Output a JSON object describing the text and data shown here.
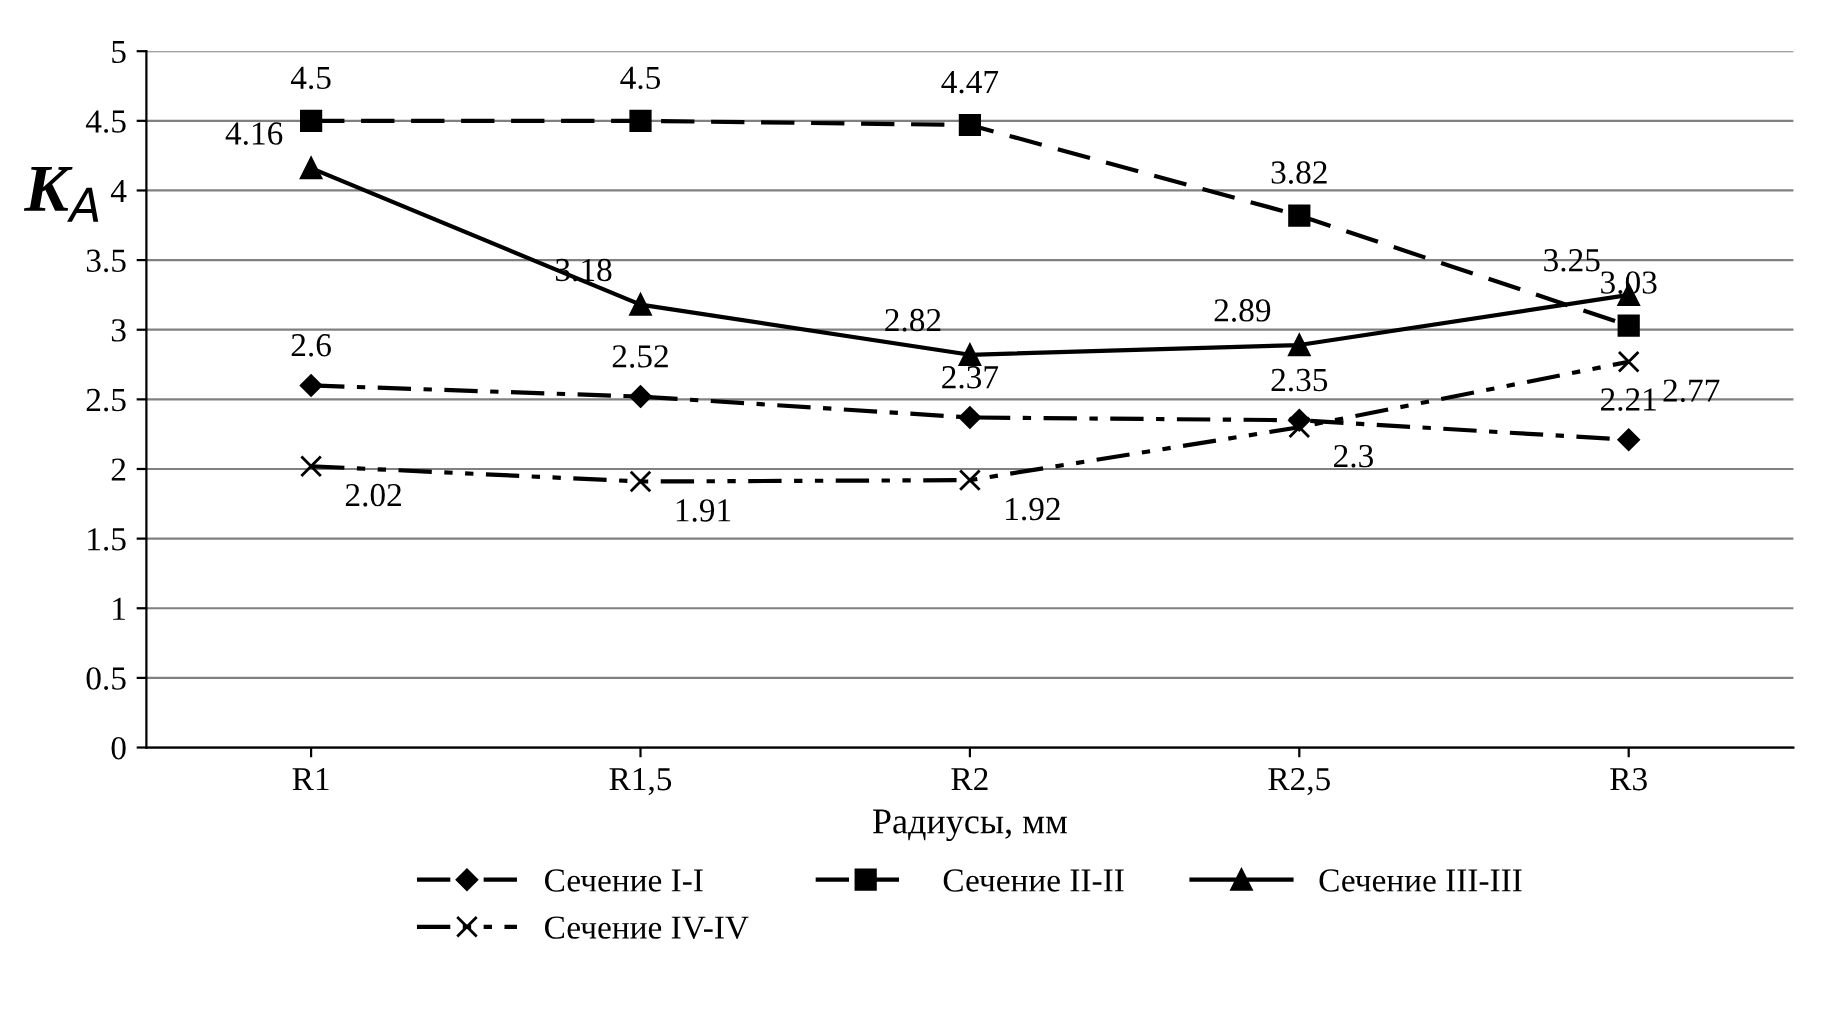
{
  "chart_data": {
    "type": "line",
    "xlabel": "Радиусы, мм",
    "ylabel": "K$_{A}$",
    "categories": [
      "R1",
      "R1,5",
      "R2",
      "R2,5",
      "R3"
    ],
    "series": [
      {
        "name": "Сечение I-I",
        "color": "#000000",
        "marker": "diamond",
        "line_style": "dashdot",
        "values": [
          2.6,
          2.52,
          2.37,
          2.35,
          2.21
        ]
      },
      {
        "name": "Сечение II-II",
        "color": "#000000",
        "marker": "square",
        "line_style": "dashed",
        "values": [
          4.5,
          4.5,
          4.47,
          3.82,
          3.03
        ]
      },
      {
        "name": "Сечение III-III",
        "color": "#000000",
        "marker": "triangle",
        "line_style": "solid",
        "values": [
          4.16,
          3.18,
          2.82,
          2.89,
          3.25
        ]
      },
      {
        "name": "Сечение IV-IV",
        "color": "#000000",
        "marker": "cross",
        "line_style": "dashdotdot",
        "values": [
          2.02,
          1.91,
          1.92,
          2.3,
          2.77
        ]
      }
    ],
    "ylim": [
      0,
      5
    ],
    "yticks": [
      0,
      0.5,
      1,
      1.5,
      2,
      2.5,
      3,
      3.5,
      4,
      4.5,
      5
    ],
    "grid": "y",
    "legend": "bottom",
    "data_labels": true
  }
}
